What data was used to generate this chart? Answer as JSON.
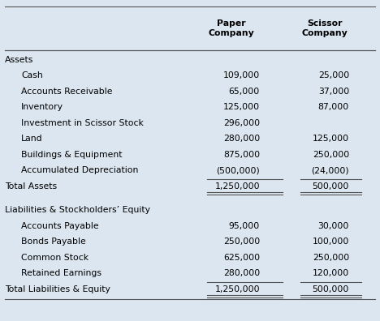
{
  "bg_color": "#dce6f0",
  "header_col1": "Paper\nCompany",
  "header_col2": "Scissor\nCompany",
  "rows": [
    {
      "label": "Assets",
      "paper": "",
      "scissor": "",
      "indent": 0,
      "bold": false,
      "gap_before": false,
      "total": false
    },
    {
      "label": "Cash",
      "paper": "109,000",
      "scissor": "25,000",
      "indent": 1,
      "bold": false,
      "gap_before": false,
      "total": false
    },
    {
      "label": "Accounts Receivable",
      "paper": "65,000",
      "scissor": "37,000",
      "indent": 1,
      "bold": false,
      "gap_before": false,
      "total": false
    },
    {
      "label": "Inventory",
      "paper": "125,000",
      "scissor": "87,000",
      "indent": 1,
      "bold": false,
      "gap_before": false,
      "total": false
    },
    {
      "label": "Investment in Scissor Stock",
      "paper": "296,000",
      "scissor": "",
      "indent": 1,
      "bold": false,
      "gap_before": false,
      "total": false
    },
    {
      "label": "Land",
      "paper": "280,000",
      "scissor": "125,000",
      "indent": 1,
      "bold": false,
      "gap_before": false,
      "total": false
    },
    {
      "label": "Buildings & Equipment",
      "paper": "875,000",
      "scissor": "250,000",
      "indent": 1,
      "bold": false,
      "gap_before": false,
      "total": false
    },
    {
      "label": "Accumulated Depreciation",
      "paper": "(500,000)",
      "scissor": "(24,000)",
      "indent": 1,
      "bold": false,
      "gap_before": false,
      "total": false
    },
    {
      "label": "Total Assets",
      "paper": "1,250,000",
      "scissor": "500,000",
      "indent": 0,
      "bold": false,
      "gap_before": false,
      "total": true
    },
    {
      "label": "Liabilities & Stockholders’ Equity",
      "paper": "",
      "scissor": "",
      "indent": 0,
      "bold": false,
      "gap_before": true,
      "total": false
    },
    {
      "label": "Accounts Payable",
      "paper": "95,000",
      "scissor": "30,000",
      "indent": 1,
      "bold": false,
      "gap_before": false,
      "total": false
    },
    {
      "label": "Bonds Payable",
      "paper": "250,000",
      "scissor": "100,000",
      "indent": 1,
      "bold": false,
      "gap_before": false,
      "total": false
    },
    {
      "label": "Common Stock",
      "paper": "625,000",
      "scissor": "250,000",
      "indent": 1,
      "bold": false,
      "gap_before": false,
      "total": false
    },
    {
      "label": "Retained Earnings",
      "paper": "280,000",
      "scissor": "120,000",
      "indent": 1,
      "bold": false,
      "gap_before": false,
      "total": false
    },
    {
      "label": "Total Liabilities & Equity",
      "paper": "1,250,000",
      "scissor": "500,000",
      "indent": 0,
      "bold": false,
      "gap_before": false,
      "total": true
    }
  ],
  "font_size": 7.8,
  "text_color": "#000000",
  "line_color": "#555555"
}
